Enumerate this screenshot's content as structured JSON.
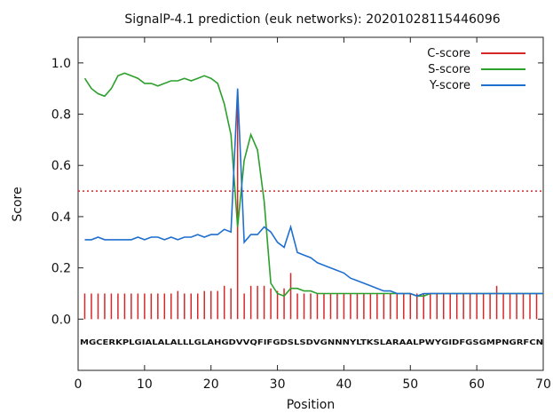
{
  "chart_data": {
    "type": "line",
    "title": "SignalP-4.1 prediction (euk networks): 20201028115446096",
    "xlabel": "Position",
    "ylabel": "Score",
    "xlim": [
      0,
      70
    ],
    "ylim": [
      -0.2,
      1.1
    ],
    "x_ticks": [
      "0",
      "10",
      "20",
      "30",
      "40",
      "50",
      "60",
      "70"
    ],
    "y_ticks": [
      "0.0",
      "0.2",
      "0.4",
      "0.6",
      "0.8",
      "1.0"
    ],
    "grid": false,
    "legend_placement": "top-right",
    "threshold": 0.5,
    "threshold_color": "#d62728",
    "sequence": "MGCERKPLGIALALALLLGLAHGDVVQFIFGDSLSDVGNNNYLTKSLARAALPWYGIDFGSGMPNGRFCN",
    "series": [
      {
        "name": "C-score",
        "color": "#d62728",
        "kind": "stem",
        "x": [
          1,
          2,
          3,
          4,
          5,
          6,
          7,
          8,
          9,
          10,
          11,
          12,
          13,
          14,
          15,
          16,
          17,
          18,
          19,
          20,
          21,
          22,
          23,
          24,
          25,
          26,
          27,
          28,
          29,
          30,
          31,
          32,
          33,
          34,
          35,
          36,
          37,
          38,
          39,
          40,
          41,
          42,
          43,
          44,
          45,
          46,
          47,
          48,
          49,
          50,
          51,
          52,
          53,
          54,
          55,
          56,
          57,
          58,
          59,
          60,
          61,
          62,
          63,
          64,
          65,
          66,
          67,
          68,
          69
        ],
        "values": [
          0.1,
          0.1,
          0.1,
          0.1,
          0.1,
          0.1,
          0.1,
          0.1,
          0.1,
          0.1,
          0.1,
          0.1,
          0.1,
          0.1,
          0.11,
          0.1,
          0.1,
          0.1,
          0.11,
          0.11,
          0.11,
          0.13,
          0.12,
          0.84,
          0.1,
          0.13,
          0.13,
          0.13,
          0.12,
          0.11,
          0.12,
          0.18,
          0.1,
          0.1,
          0.1,
          0.1,
          0.1,
          0.1,
          0.1,
          0.1,
          0.1,
          0.1,
          0.1,
          0.1,
          0.1,
          0.1,
          0.1,
          0.1,
          0.1,
          0.1,
          0.1,
          0.1,
          0.1,
          0.1,
          0.1,
          0.1,
          0.1,
          0.1,
          0.1,
          0.1,
          0.1,
          0.1,
          0.13,
          0.1,
          0.1,
          0.1,
          0.1,
          0.1,
          0.1
        ]
      },
      {
        "name": "S-score",
        "color": "#2ca02c",
        "kind": "line",
        "x": [
          1,
          2,
          3,
          4,
          5,
          6,
          7,
          8,
          9,
          10,
          11,
          12,
          13,
          14,
          15,
          16,
          17,
          18,
          19,
          20,
          21,
          22,
          23,
          24,
          25,
          26,
          27,
          28,
          29,
          30,
          31,
          32,
          33,
          34,
          35,
          36,
          37,
          38,
          39,
          40,
          41,
          42,
          43,
          44,
          45,
          46,
          47,
          48,
          49,
          50,
          51,
          52,
          53,
          54,
          55,
          56,
          57,
          58,
          59,
          60,
          61,
          62,
          63,
          64,
          65,
          66,
          67,
          68,
          69,
          70
        ],
        "values": [
          0.94,
          0.9,
          0.88,
          0.87,
          0.9,
          0.95,
          0.96,
          0.95,
          0.94,
          0.92,
          0.92,
          0.91,
          0.92,
          0.93,
          0.93,
          0.94,
          0.93,
          0.94,
          0.95,
          0.94,
          0.92,
          0.84,
          0.72,
          0.36,
          0.62,
          0.72,
          0.66,
          0.46,
          0.14,
          0.1,
          0.09,
          0.12,
          0.12,
          0.11,
          0.11,
          0.1,
          0.1,
          0.1,
          0.1,
          0.1,
          0.1,
          0.1,
          0.1,
          0.1,
          0.1,
          0.1,
          0.1,
          0.1,
          0.1,
          0.1,
          0.09,
          0.09,
          0.1,
          0.1,
          0.1,
          0.1,
          0.1,
          0.1,
          0.1,
          0.1,
          0.1,
          0.1,
          0.1,
          0.1,
          0.1,
          0.1,
          0.1,
          0.1,
          0.1,
          0.1
        ]
      },
      {
        "name": "Y-score",
        "color": "#1f6fcf",
        "kind": "line",
        "x": [
          1,
          2,
          3,
          4,
          5,
          6,
          7,
          8,
          9,
          10,
          11,
          12,
          13,
          14,
          15,
          16,
          17,
          18,
          19,
          20,
          21,
          22,
          23,
          24,
          25,
          26,
          27,
          28,
          29,
          30,
          31,
          32,
          33,
          34,
          35,
          36,
          37,
          38,
          39,
          40,
          41,
          42,
          43,
          44,
          45,
          46,
          47,
          48,
          49,
          50,
          51,
          52,
          53,
          54,
          55,
          56,
          57,
          58,
          59,
          60,
          61,
          62,
          63,
          64,
          65,
          66,
          67,
          68,
          69,
          70
        ],
        "values": [
          0.31,
          0.31,
          0.32,
          0.31,
          0.31,
          0.31,
          0.31,
          0.31,
          0.32,
          0.31,
          0.32,
          0.32,
          0.31,
          0.32,
          0.31,
          0.32,
          0.32,
          0.33,
          0.32,
          0.33,
          0.33,
          0.35,
          0.34,
          0.9,
          0.3,
          0.33,
          0.33,
          0.36,
          0.34,
          0.3,
          0.28,
          0.36,
          0.26,
          0.25,
          0.24,
          0.22,
          0.21,
          0.2,
          0.19,
          0.18,
          0.16,
          0.15,
          0.14,
          0.13,
          0.12,
          0.11,
          0.11,
          0.1,
          0.1,
          0.1,
          0.09,
          0.1,
          0.1,
          0.1,
          0.1,
          0.1,
          0.1,
          0.1,
          0.1,
          0.1,
          0.1,
          0.1,
          0.1,
          0.1,
          0.1,
          0.1,
          0.1,
          0.1,
          0.1,
          0.1
        ]
      }
    ]
  }
}
